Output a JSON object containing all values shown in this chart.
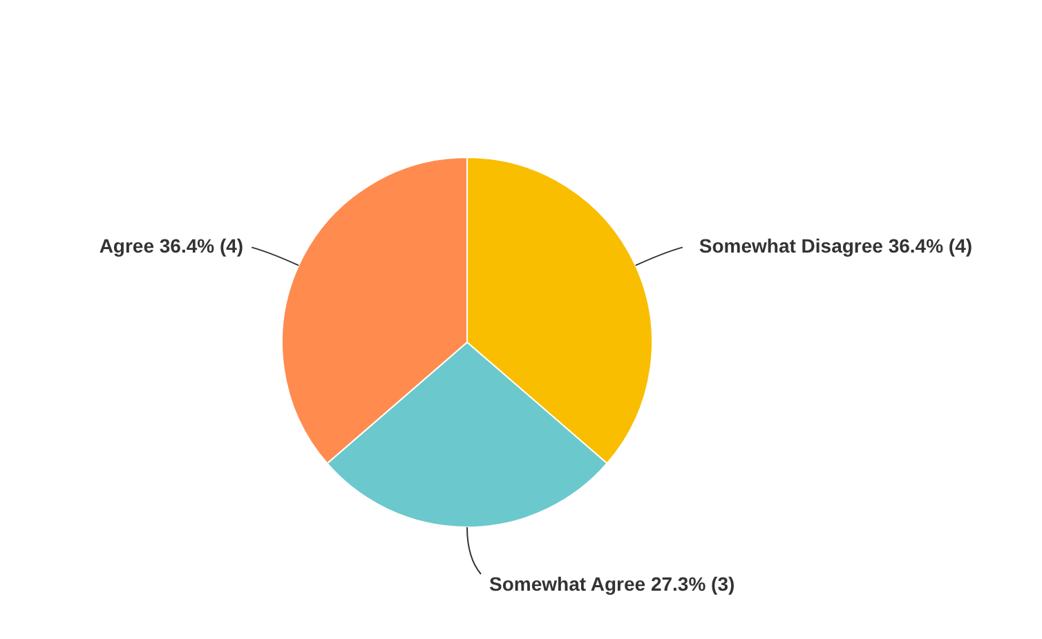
{
  "chart_data": {
    "type": "pie",
    "categories": [
      "Somewhat Disagree",
      "Somewhat Agree",
      "Agree"
    ],
    "values": [
      4,
      3,
      4
    ],
    "value_labels": [
      "36.4% (4)",
      "27.3% (3)",
      "36.4% (4)"
    ],
    "colors": [
      "#f9be00",
      "#6bc8cd",
      "#ff8b4f"
    ]
  }
}
